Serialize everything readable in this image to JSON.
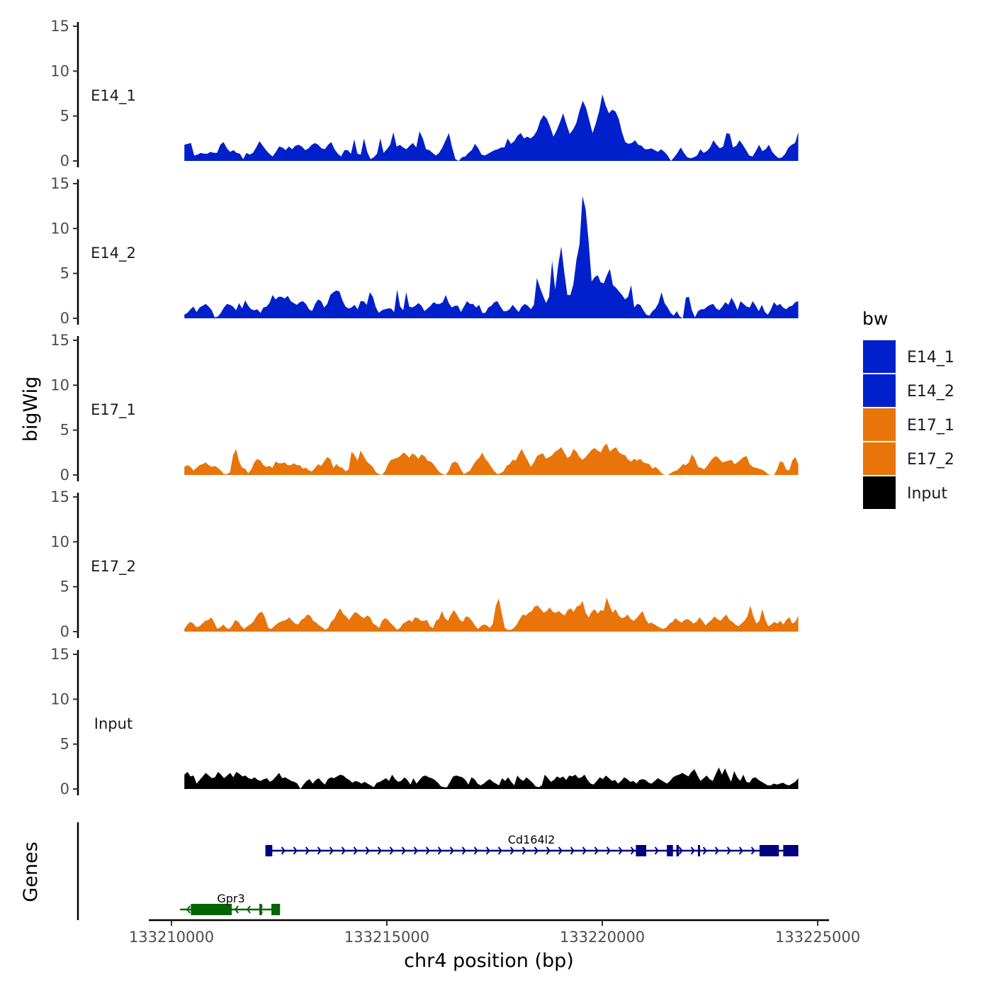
{
  "chart_data": {
    "type": "area",
    "title": "",
    "ylabel": "bigWig",
    "xlabel": "chr4 position (bp)",
    "xlim": [
      133209000,
      133225000
    ],
    "ylim": [
      0,
      15
    ],
    "y_ticks": [
      0,
      5,
      10,
      15
    ],
    "x_ticks": [
      133210000,
      133215000,
      133220000,
      133225000
    ],
    "x_tick_labels": [
      "133210000",
      "133215000",
      "133220000",
      "133225000"
    ],
    "x_range_data": [
      133210300,
      133224550
    ],
    "tracks": [
      {
        "name": "E14_1",
        "color": "#0020CC",
        "values": [
          1.8,
          1.9,
          2.0,
          0.6,
          0.7,
          0.9,
          0.8,
          0.8,
          1.0,
          0.9,
          0.9,
          1.8,
          2.1,
          1.4,
          1.0,
          1.2,
          0.9,
          0.8,
          0.2,
          0.9,
          0.7,
          0.9,
          1.5,
          2.2,
          1.7,
          1.2,
          0.8,
          0.5,
          1.0,
          1.6,
          1.5,
          1.2,
          1.6,
          1.3,
          1.7,
          1.8,
          1.6,
          1.2,
          1.4,
          1.8,
          2.0,
          1.8,
          1.4,
          1.3,
          1.8,
          2.1,
          1.3,
          0.8,
          0.5,
          1.2,
          1.2,
          0.8,
          2.4,
          0.8,
          0.7,
          2.5,
          1.0,
          0.2,
          0.4,
          0.8,
          2.5,
          0.9,
          1.3,
          1.8,
          3.2,
          1.6,
          1.8,
          1.5,
          1.3,
          1.7,
          2.0,
          1.5,
          3.3,
          2.5,
          1.3,
          1.2,
          0.9,
          0.6,
          0.9,
          1.5,
          2.3,
          3.1,
          1.5,
          0.2,
          0.0,
          0.4,
          0.5,
          0.9,
          1.2,
          1.9,
          1.4,
          0.7,
          0.6,
          0.8,
          1.0,
          1.2,
          1.3,
          1.5,
          1.5,
          2.5,
          1.9,
          2.2,
          2.8,
          3.1,
          2.5,
          2.7,
          2.5,
          2.8,
          3.4,
          4.5,
          5.1,
          4.7,
          3.8,
          2.7,
          3.4,
          4.3,
          5.3,
          4.1,
          3.0,
          3.5,
          4.2,
          5.6,
          6.7,
          5.9,
          4.5,
          3.1,
          4.2,
          5.5,
          7.4,
          6.2,
          5.3,
          5.7,
          5.5,
          4.7,
          3.2,
          2.1,
          1.9,
          2.0,
          2.3,
          1.8,
          1.7,
          1.3,
          1.3,
          1.4,
          1.2,
          1.0,
          1.3,
          1.0,
          0.6,
          0.0,
          0.4,
          0.9,
          1.5,
          0.9,
          0.4,
          0.3,
          0.4,
          0.6,
          1.3,
          0.9,
          1.1,
          1.5,
          2.3,
          1.8,
          1.4,
          1.6,
          3.1,
          3.0,
          1.5,
          1.7,
          2.3,
          1.8,
          1.2,
          0.6,
          0.5,
          1.1,
          1.8,
          1.1,
          1.3,
          1.8,
          1.0,
          0.6,
          0.3,
          0.4,
          0.8,
          1.5,
          1.8,
          2.0,
          3.2
        ]
      },
      {
        "name": "E14_2",
        "color": "#0020CC",
        "values": [
          0.4,
          0.6,
          1.0,
          1.3,
          0.7,
          1.2,
          1.4,
          1.6,
          1.3,
          0.9,
          0.1,
          0.2,
          0.6,
          1.2,
          1.6,
          1.5,
          1.3,
          0.9,
          1.7,
          1.1,
          2.0,
          1.4,
          1.0,
          0.9,
          1.0,
          0.6,
          1.2,
          1.3,
          1.7,
          2.6,
          2.1,
          2.4,
          2.4,
          2.2,
          2.5,
          1.9,
          1.7,
          1.5,
          1.8,
          1.9,
          1.6,
          1.0,
          0.8,
          1.6,
          2.1,
          1.9,
          1.2,
          1.6,
          2.6,
          2.9,
          3.1,
          3.0,
          2.0,
          1.3,
          1.1,
          1.2,
          1.5,
          1.0,
          1.9,
          1.9,
          1.5,
          2.9,
          2.4,
          1.2,
          0.6,
          0.9,
          1.0,
          1.1,
          1.1,
          0.7,
          3.2,
          1.3,
          0.9,
          2.9,
          1.3,
          1.2,
          1.4,
          1.7,
          1.4,
          0.8,
          1.1,
          1.4,
          1.8,
          1.6,
          1.6,
          1.8,
          2.6,
          1.7,
          1.2,
          1.4,
          1.4,
          0.7,
          1.3,
          1.9,
          1.6,
          1.6,
          1.2,
          1.5,
          0.6,
          0.6,
          1.2,
          1.4,
          1.8,
          1.9,
          1.3,
          0.8,
          0.8,
          1.0,
          1.5,
          1.1,
          0.7,
          1.3,
          1.6,
          1.4,
          1.0,
          1.5,
          4.5,
          3.4,
          2.5,
          1.7,
          2.4,
          6.4,
          3.2,
          5.9,
          8.0,
          5.1,
          2.6,
          2.6,
          3.8,
          6.5,
          8.2,
          13.6,
          12.2,
          8.6,
          4.1,
          4.6,
          4.8,
          4.0,
          3.9,
          4.8,
          5.5,
          3.7,
          3.4,
          3.0,
          2.6,
          2.1,
          2.4,
          3.7,
          1.2,
          1.6,
          1.5,
          0.9,
          0.4,
          0.3,
          0.8,
          1.1,
          1.7,
          2.9,
          1.7,
          1.2,
          0.6,
          0.3,
          0.8,
          0.2,
          0.0,
          2.3,
          2.4,
          0.9,
          0.1,
          0.8,
          1.0,
          1.0,
          1.3,
          1.5,
          1.6,
          1.1,
          0.9,
          1.3,
          1.8,
          1.5,
          2.3,
          1.7,
          0.9,
          1.9,
          1.6,
          1.3,
          1.2,
          1.9,
          1.4,
          0.8,
          1.5,
          0.7,
          0.4,
          1.0,
          1.8,
          1.4,
          1.6,
          1.2,
          1.0,
          1.3,
          1.4,
          1.8,
          1.9
        ]
      },
      {
        "name": "E17_1",
        "color": "#E8740A",
        "values": [
          0.9,
          1.1,
          0.9,
          0.5,
          0.8,
          1.1,
          1.2,
          1.4,
          1.1,
          0.9,
          1.0,
          0.8,
          0.5,
          0.1,
          0.1,
          0.3,
          2.2,
          2.9,
          1.5,
          0.8,
          0.7,
          0.2,
          0.6,
          1.4,
          1.8,
          1.6,
          1.1,
          0.9,
          1.0,
          0.8,
          1.5,
          1.3,
          1.3,
          1.4,
          1.1,
          1.1,
          1.3,
          1.1,
          1.1,
          0.7,
          0.8,
          0.5,
          0.4,
          0.8,
          1.2,
          1.0,
          1.5,
          2.0,
          1.8,
          0.8,
          1.2,
          0.9,
          0.8,
          0.4,
          0.6,
          2.6,
          2.2,
          1.6,
          2.7,
          2.1,
          1.5,
          1.2,
          0.9,
          0.3,
          0.1,
          0.0,
          0.4,
          1.2,
          1.7,
          1.8,
          1.9,
          2.1,
          2.5,
          2.3,
          1.9,
          2.4,
          2.2,
          1.8,
          2.3,
          2.1,
          1.6,
          1.5,
          1.2,
          0.7,
          0.3,
          0.1,
          0.0,
          0.5,
          1.3,
          1.5,
          1.3,
          0.6,
          0.1,
          0.3,
          0.5,
          1.1,
          1.6,
          1.9,
          2.5,
          1.8,
          1.4,
          0.9,
          0.4,
          0.1,
          0.2,
          0.4,
          1.0,
          1.2,
          1.7,
          1.6,
          2.3,
          2.9,
          2.2,
          1.6,
          0.9,
          1.4,
          2.1,
          2.3,
          2.4,
          1.8,
          2.0,
          2.2,
          2.6,
          2.8,
          3.1,
          2.5,
          1.9,
          2.1,
          2.9,
          2.6,
          2.0,
          1.7,
          2.0,
          2.4,
          2.8,
          3.0,
          2.7,
          2.5,
          3.2,
          3.5,
          2.6,
          2.9,
          3.1,
          2.5,
          2.3,
          2.2,
          1.7,
          1.5,
          1.8,
          1.6,
          1.8,
          1.4,
          1.3,
          1.2,
          0.7,
          0.9,
          0.6,
          0.2,
          0.0,
          0.0,
          0.2,
          0.4,
          0.5,
          0.8,
          1.2,
          1.1,
          1.4,
          2.3,
          1.8,
          0.9,
          0.8,
          0.6,
          1.0,
          1.5,
          1.9,
          2.1,
          1.8,
          1.4,
          1.5,
          1.6,
          1.7,
          1.2,
          1.4,
          1.7,
          2.0,
          2.1,
          1.2,
          0.9,
          0.8,
          0.7,
          0.6,
          0.4,
          0.1,
          0.0,
          0.0,
          0.6,
          1.5,
          1.4,
          0.6,
          0.5,
          1.6,
          2.0,
          1.2
        ]
      },
      {
        "name": "E17_2",
        "color": "#E8740A",
        "values": [
          0.3,
          0.8,
          1.1,
          0.9,
          0.5,
          0.6,
          0.9,
          1.2,
          1.3,
          1.6,
          1.0,
          0.3,
          0.5,
          0.8,
          0.4,
          0.3,
          0.7,
          1.3,
          1.1,
          0.6,
          0.3,
          0.6,
          0.8,
          1.1,
          1.7,
          2.1,
          2.2,
          1.5,
          0.4,
          0.3,
          0.6,
          0.9,
          1.1,
          1.2,
          1.3,
          1.6,
          1.2,
          0.9,
          0.8,
          1.3,
          1.5,
          1.9,
          1.8,
          1.2,
          1.0,
          0.7,
          0.5,
          0.2,
          0.4,
          1.1,
          1.4,
          2.1,
          2.6,
          2.0,
          1.7,
          1.3,
          1.8,
          2.2,
          2.0,
          1.7,
          1.5,
          1.8,
          1.6,
          0.9,
          0.7,
          0.4,
          1.2,
          1.5,
          1.3,
          0.9,
          0.6,
          0.2,
          0.4,
          0.9,
          1.1,
          1.3,
          1.1,
          1.6,
          1.5,
          1.2,
          1.2,
          1.3,
          0.6,
          0.4,
          1.2,
          1.4,
          2.3,
          1.5,
          1.2,
          1.9,
          2.4,
          1.9,
          1.3,
          1.1,
          1.7,
          1.6,
          1.2,
          0.7,
          0.3,
          0.6,
          0.8,
          0.7,
          0.4,
          0.9,
          2.9,
          3.7,
          2.0,
          0.4,
          0.2,
          0.2,
          0.4,
          0.8,
          1.4,
          1.9,
          1.8,
          2.1,
          2.3,
          2.8,
          2.9,
          2.5,
          2.1,
          2.3,
          2.7,
          2.2,
          2.1,
          2.3,
          2.0,
          1.8,
          2.4,
          2.6,
          2.2,
          2.8,
          2.9,
          3.4,
          2.1,
          1.6,
          2.2,
          2.5,
          2.0,
          2.4,
          2.3,
          3.8,
          2.9,
          2.1,
          2.5,
          1.8,
          1.5,
          1.6,
          1.9,
          1.4,
          1.2,
          1.5,
          1.9,
          2.3,
          1.4,
          0.9,
          1.0,
          0.8,
          0.6,
          0.4,
          0.3,
          0.5,
          0.9,
          1.1,
          1.5,
          1.2,
          1.0,
          1.3,
          1.4,
          1.2,
          0.9,
          1.1,
          1.6,
          1.2,
          0.7,
          1.0,
          1.3,
          1.7,
          1.4,
          1.2,
          1.6,
          1.9,
          1.3,
          1.1,
          0.8,
          0.6,
          0.9,
          1.2,
          1.7,
          2.9,
          1.7,
          0.9,
          1.2,
          2.5,
          1.3,
          0.6,
          0.8,
          1.1,
          0.9,
          1.2,
          0.8,
          1.3,
          1.6,
          0.9,
          1.1,
          1.8
        ]
      },
      {
        "name": "Input",
        "color": "#000000",
        "values": [
          1.6,
          1.9,
          1.4,
          1.5,
          0.6,
          1.0,
          1.4,
          1.8,
          1.5,
          1.2,
          1.3,
          1.9,
          1.6,
          1.2,
          1.5,
          1.8,
          1.3,
          1.9,
          1.7,
          1.4,
          1.5,
          1.2,
          1.1,
          1.3,
          1.0,
          0.9,
          1.1,
          1.2,
          0.8,
          1.0,
          1.4,
          1.8,
          1.2,
          1.3,
          1.1,
          0.9,
          0.8,
          0.6,
          0.0,
          0.5,
          0.9,
          1.1,
          0.6,
          1.0,
          1.2,
          0.8,
          0.5,
          1.1,
          1.3,
          1.2,
          1.4,
          1.6,
          1.5,
          1.2,
          1.0,
          0.7,
          0.9,
          0.8,
          0.6,
          0.8,
          0.6,
          0.4,
          0.2,
          0.7,
          0.8,
          1.0,
          1.2,
          0.9,
          1.6,
          1.1,
          0.8,
          0.9,
          1.3,
          1.0,
          0.5,
          1.2,
          0.6,
          1.0,
          1.4,
          1.5,
          1.3,
          1.2,
          1.0,
          0.7,
          0.3,
          0.2,
          0.2,
          0.8,
          1.4,
          1.5,
          1.4,
          1.3,
          1.0,
          0.5,
          1.3,
          1.1,
          0.6,
          0.4,
          0.6,
          0.9,
          1.1,
          0.8,
          0.6,
          0.4,
          1.2,
          0.9,
          1.3,
          0.8,
          0.4,
          1.5,
          1.1,
          0.9,
          1.3,
          1.0,
          0.7,
          0.3,
          0.2,
          0.4,
          1.6,
          1.2,
          0.8,
          1.0,
          1.4,
          1.2,
          1.4,
          1.0,
          1.5,
          1.4,
          1.6,
          1.2,
          1.3,
          1.6,
          1.0,
          0.6,
          0.5,
          0.9,
          1.3,
          1.1,
          1.5,
          1.2,
          0.9,
          1.0,
          0.6,
          0.9,
          1.3,
          1.1,
          0.8,
          0.9,
          0.6,
          1.0,
          1.1,
          1.0,
          0.7,
          0.6,
          0.9,
          1.2,
          1.0,
          0.8,
          0.6,
          0.9,
          1.3,
          1.5,
          1.6,
          1.8,
          1.6,
          1.4,
          1.9,
          2.2,
          1.5,
          0.9,
          1.2,
          1.5,
          1.1,
          0.9,
          1.7,
          2.4,
          1.6,
          2.3,
          1.5,
          0.8,
          2.0,
          1.3,
          0.9,
          1.6,
          0.8,
          0.7,
          1.2,
          1.3,
          1.0,
          0.8,
          0.6,
          0.4,
          0.4,
          0.6,
          0.5,
          0.6,
          0.7,
          0.5,
          0.4,
          0.6,
          0.8,
          1.2
        ]
      }
    ],
    "genes": [
      {
        "name": "Cd164l2",
        "color": "#000080",
        "strand": "+",
        "start": 133212180,
        "end": 133224550,
        "exons": [
          [
            133212180,
            133212340
          ],
          [
            133220780,
            133221020
          ],
          [
            133221500,
            133221640
          ],
          [
            133221720,
            133221780
          ],
          [
            133222220,
            133222260
          ],
          [
            133223650,
            133224100
          ],
          [
            133224200,
            133224550
          ]
        ]
      },
      {
        "name": "Gpr3",
        "color": "#006400",
        "strand": "-",
        "start": 133210200,
        "end": 133212520,
        "exons": [
          [
            133210450,
            133211400
          ],
          [
            133212040,
            133212100
          ],
          [
            133212320,
            133212520
          ]
        ]
      }
    ],
    "genes_ylabel": "Genes",
    "legend": {
      "title": "bw",
      "position": "right",
      "entries": [
        {
          "label": "E14_1",
          "color": "#0020CC"
        },
        {
          "label": "E14_2",
          "color": "#0020CC"
        },
        {
          "label": "E17_1",
          "color": "#E8740A"
        },
        {
          "label": "E17_2",
          "color": "#E8740A"
        },
        {
          "label": "Input",
          "color": "#000000"
        }
      ]
    }
  }
}
